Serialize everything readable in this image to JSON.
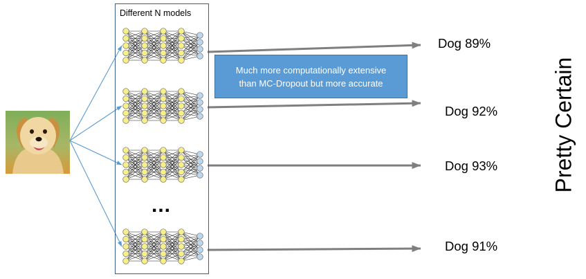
{
  "models_box": {
    "title": "Different N models",
    "ellipsis": "..."
  },
  "callout": {
    "line1": "Much more computationally extensive",
    "line2": "than MC-Dropout but more accurate"
  },
  "predictions": [
    "Dog 89%",
    "Dog 92%",
    "Dog 93%",
    "Dog 91%"
  ],
  "conclusion": "Pretty Certain",
  "colors": {
    "arrow": "#7f7f7f",
    "fan_line": "#5b9bd5",
    "node_yellow": "#f7f08a",
    "node_blue": "#bdd7ee",
    "callout_fill": "#5b9bd5"
  },
  "icons": {
    "input_image": "puppy-photo"
  }
}
